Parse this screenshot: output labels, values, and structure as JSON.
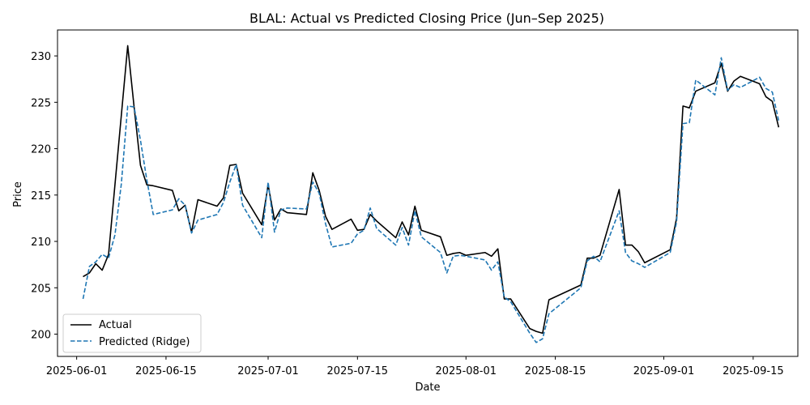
{
  "chart_data": {
    "type": "line",
    "title": "BLAL: Actual vs Predicted Closing Price (Jun–Sep 2025)",
    "xlabel": "Date",
    "ylabel": "Price",
    "xlim": [
      "2025-05-29",
      "2025-09-22"
    ],
    "ylim": [
      197.6,
      232.8
    ],
    "xticks": [
      "2025-06-01",
      "2025-06-15",
      "2025-07-01",
      "2025-07-15",
      "2025-08-01",
      "2025-08-15",
      "2025-09-01",
      "2025-09-15"
    ],
    "yticks": [
      200,
      205,
      210,
      215,
      220,
      225,
      230
    ],
    "grid": false,
    "legend_position": "lower left",
    "series": [
      {
        "name": "Actual",
        "color": "#000000",
        "style": "solid",
        "points": [
          [
            "2025-06-02",
            206.2
          ],
          [
            "2025-06-03",
            206.6
          ],
          [
            "2025-06-04",
            207.6
          ],
          [
            "2025-06-05",
            206.9
          ],
          [
            "2025-06-06",
            208.6
          ],
          [
            "2025-06-09",
            231.1
          ],
          [
            "2025-06-10",
            224.5
          ],
          [
            "2025-06-11",
            218.2
          ],
          [
            "2025-06-12",
            216.1
          ],
          [
            "2025-06-13",
            216.0
          ],
          [
            "2025-06-16",
            215.5
          ],
          [
            "2025-06-17",
            213.3
          ],
          [
            "2025-06-18",
            213.9
          ],
          [
            "2025-06-19",
            211.0
          ],
          [
            "2025-06-20",
            214.5
          ],
          [
            "2025-06-23",
            213.8
          ],
          [
            "2025-06-24",
            214.7
          ],
          [
            "2025-06-25",
            218.2
          ],
          [
            "2025-06-26",
            218.3
          ],
          [
            "2025-06-27",
            215.2
          ],
          [
            "2025-06-30",
            211.8
          ],
          [
            "2025-07-01",
            216.1
          ],
          [
            "2025-07-02",
            212.3
          ],
          [
            "2025-07-03",
            213.5
          ],
          [
            "2025-07-04",
            213.1
          ],
          [
            "2025-07-07",
            212.9
          ],
          [
            "2025-07-08",
            217.4
          ],
          [
            "2025-07-09",
            215.5
          ],
          [
            "2025-07-10",
            212.7
          ],
          [
            "2025-07-11",
            211.3
          ],
          [
            "2025-07-14",
            212.4
          ],
          [
            "2025-07-15",
            211.2
          ],
          [
            "2025-07-16",
            211.3
          ],
          [
            "2025-07-17",
            212.9
          ],
          [
            "2025-07-18",
            212.2
          ],
          [
            "2025-07-21",
            210.4
          ],
          [
            "2025-07-22",
            212.1
          ],
          [
            "2025-07-23",
            210.7
          ],
          [
            "2025-07-24",
            213.8
          ],
          [
            "2025-07-25",
            211.2
          ],
          [
            "2025-07-28",
            210.5
          ],
          [
            "2025-07-29",
            208.5
          ],
          [
            "2025-07-30",
            208.7
          ],
          [
            "2025-07-31",
            208.8
          ],
          [
            "2025-08-01",
            208.5
          ],
          [
            "2025-08-04",
            208.8
          ],
          [
            "2025-08-05",
            208.4
          ],
          [
            "2025-08-06",
            209.2
          ],
          [
            "2025-08-07",
            203.8
          ],
          [
            "2025-08-08",
            203.8
          ],
          [
            "2025-08-11",
            200.6
          ],
          [
            "2025-08-12",
            200.3
          ],
          [
            "2025-08-13",
            200.1
          ],
          [
            "2025-08-14",
            203.7
          ],
          [
            "2025-08-19",
            205.3
          ],
          [
            "2025-08-20",
            208.2
          ],
          [
            "2025-08-21",
            208.2
          ],
          [
            "2025-08-22",
            208.5
          ],
          [
            "2025-08-25",
            215.6
          ],
          [
            "2025-08-26",
            209.6
          ],
          [
            "2025-08-27",
            209.6
          ],
          [
            "2025-08-28",
            208.9
          ],
          [
            "2025-08-29",
            207.7
          ],
          [
            "2025-09-02",
            209.1
          ],
          [
            "2025-09-03",
            212.5
          ],
          [
            "2025-09-04",
            224.6
          ],
          [
            "2025-09-05",
            224.4
          ],
          [
            "2025-09-06",
            226.2
          ],
          [
            "2025-09-09",
            227.1
          ],
          [
            "2025-09-10",
            229.2
          ],
          [
            "2025-09-11",
            226.2
          ],
          [
            "2025-09-12",
            227.3
          ],
          [
            "2025-09-13",
            227.8
          ],
          [
            "2025-09-16",
            227.0
          ],
          [
            "2025-09-17",
            225.6
          ],
          [
            "2025-09-18",
            225.1
          ],
          [
            "2025-09-19",
            222.3
          ]
        ]
      },
      {
        "name": "Predicted (Ridge)",
        "color": "#1f77b4",
        "style": "dashed",
        "points": [
          [
            "2025-06-02",
            203.8
          ],
          [
            "2025-06-03",
            207.3
          ],
          [
            "2025-06-04",
            207.8
          ],
          [
            "2025-06-05",
            208.6
          ],
          [
            "2025-06-06",
            208.2
          ],
          [
            "2025-06-07",
            210.7
          ],
          [
            "2025-06-08",
            216.2
          ],
          [
            "2025-06-09",
            224.6
          ],
          [
            "2025-06-10",
            224.5
          ],
          [
            "2025-06-11",
            220.9
          ],
          [
            "2025-06-12",
            216.6
          ],
          [
            "2025-06-13",
            212.9
          ],
          [
            "2025-06-16",
            213.4
          ],
          [
            "2025-06-17",
            214.6
          ],
          [
            "2025-06-18",
            213.9
          ],
          [
            "2025-06-19",
            210.9
          ],
          [
            "2025-06-20",
            212.3
          ],
          [
            "2025-06-23",
            212.9
          ],
          [
            "2025-06-24",
            214.2
          ],
          [
            "2025-06-25",
            216.4
          ],
          [
            "2025-06-26",
            218.3
          ],
          [
            "2025-06-27",
            213.9
          ],
          [
            "2025-06-30",
            210.4
          ],
          [
            "2025-07-01",
            216.4
          ],
          [
            "2025-07-02",
            211.0
          ],
          [
            "2025-07-03",
            213.4
          ],
          [
            "2025-07-04",
            213.6
          ],
          [
            "2025-07-07",
            213.5
          ],
          [
            "2025-07-08",
            216.4
          ],
          [
            "2025-07-09",
            215.2
          ],
          [
            "2025-07-10",
            211.9
          ],
          [
            "2025-07-11",
            209.4
          ],
          [
            "2025-07-14",
            209.8
          ],
          [
            "2025-07-15",
            210.8
          ],
          [
            "2025-07-16",
            211.2
          ],
          [
            "2025-07-17",
            213.6
          ],
          [
            "2025-07-18",
            211.4
          ],
          [
            "2025-07-21",
            209.6
          ],
          [
            "2025-07-22",
            211.5
          ],
          [
            "2025-07-23",
            209.6
          ],
          [
            "2025-07-24",
            213.3
          ],
          [
            "2025-07-25",
            210.5
          ],
          [
            "2025-07-28",
            208.8
          ],
          [
            "2025-07-29",
            206.6
          ],
          [
            "2025-07-30",
            208.4
          ],
          [
            "2025-07-31",
            208.5
          ],
          [
            "2025-08-01",
            208.4
          ],
          [
            "2025-08-04",
            208.0
          ],
          [
            "2025-08-05",
            206.9
          ],
          [
            "2025-08-06",
            207.8
          ],
          [
            "2025-08-07",
            204.0
          ],
          [
            "2025-08-08",
            203.5
          ],
          [
            "2025-08-11",
            200.1
          ],
          [
            "2025-08-12",
            199.1
          ],
          [
            "2025-08-13",
            199.5
          ],
          [
            "2025-08-14",
            202.2
          ],
          [
            "2025-08-19",
            205.0
          ],
          [
            "2025-08-20",
            207.9
          ],
          [
            "2025-08-21",
            208.4
          ],
          [
            "2025-08-22",
            207.8
          ],
          [
            "2025-08-25",
            213.3
          ],
          [
            "2025-08-26",
            208.8
          ],
          [
            "2025-08-27",
            207.9
          ],
          [
            "2025-08-28",
            207.6
          ],
          [
            "2025-08-29",
            207.2
          ],
          [
            "2025-09-02",
            208.8
          ],
          [
            "2025-09-03",
            212.1
          ],
          [
            "2025-09-04",
            222.7
          ],
          [
            "2025-09-05",
            222.8
          ],
          [
            "2025-09-06",
            227.4
          ],
          [
            "2025-09-09",
            225.8
          ],
          [
            "2025-09-10",
            229.8
          ],
          [
            "2025-09-11",
            226.3
          ],
          [
            "2025-09-12",
            226.9
          ],
          [
            "2025-09-13",
            226.6
          ],
          [
            "2025-09-16",
            227.7
          ],
          [
            "2025-09-17",
            226.5
          ],
          [
            "2025-09-18",
            226.1
          ],
          [
            "2025-09-19",
            223.0
          ]
        ]
      }
    ]
  }
}
